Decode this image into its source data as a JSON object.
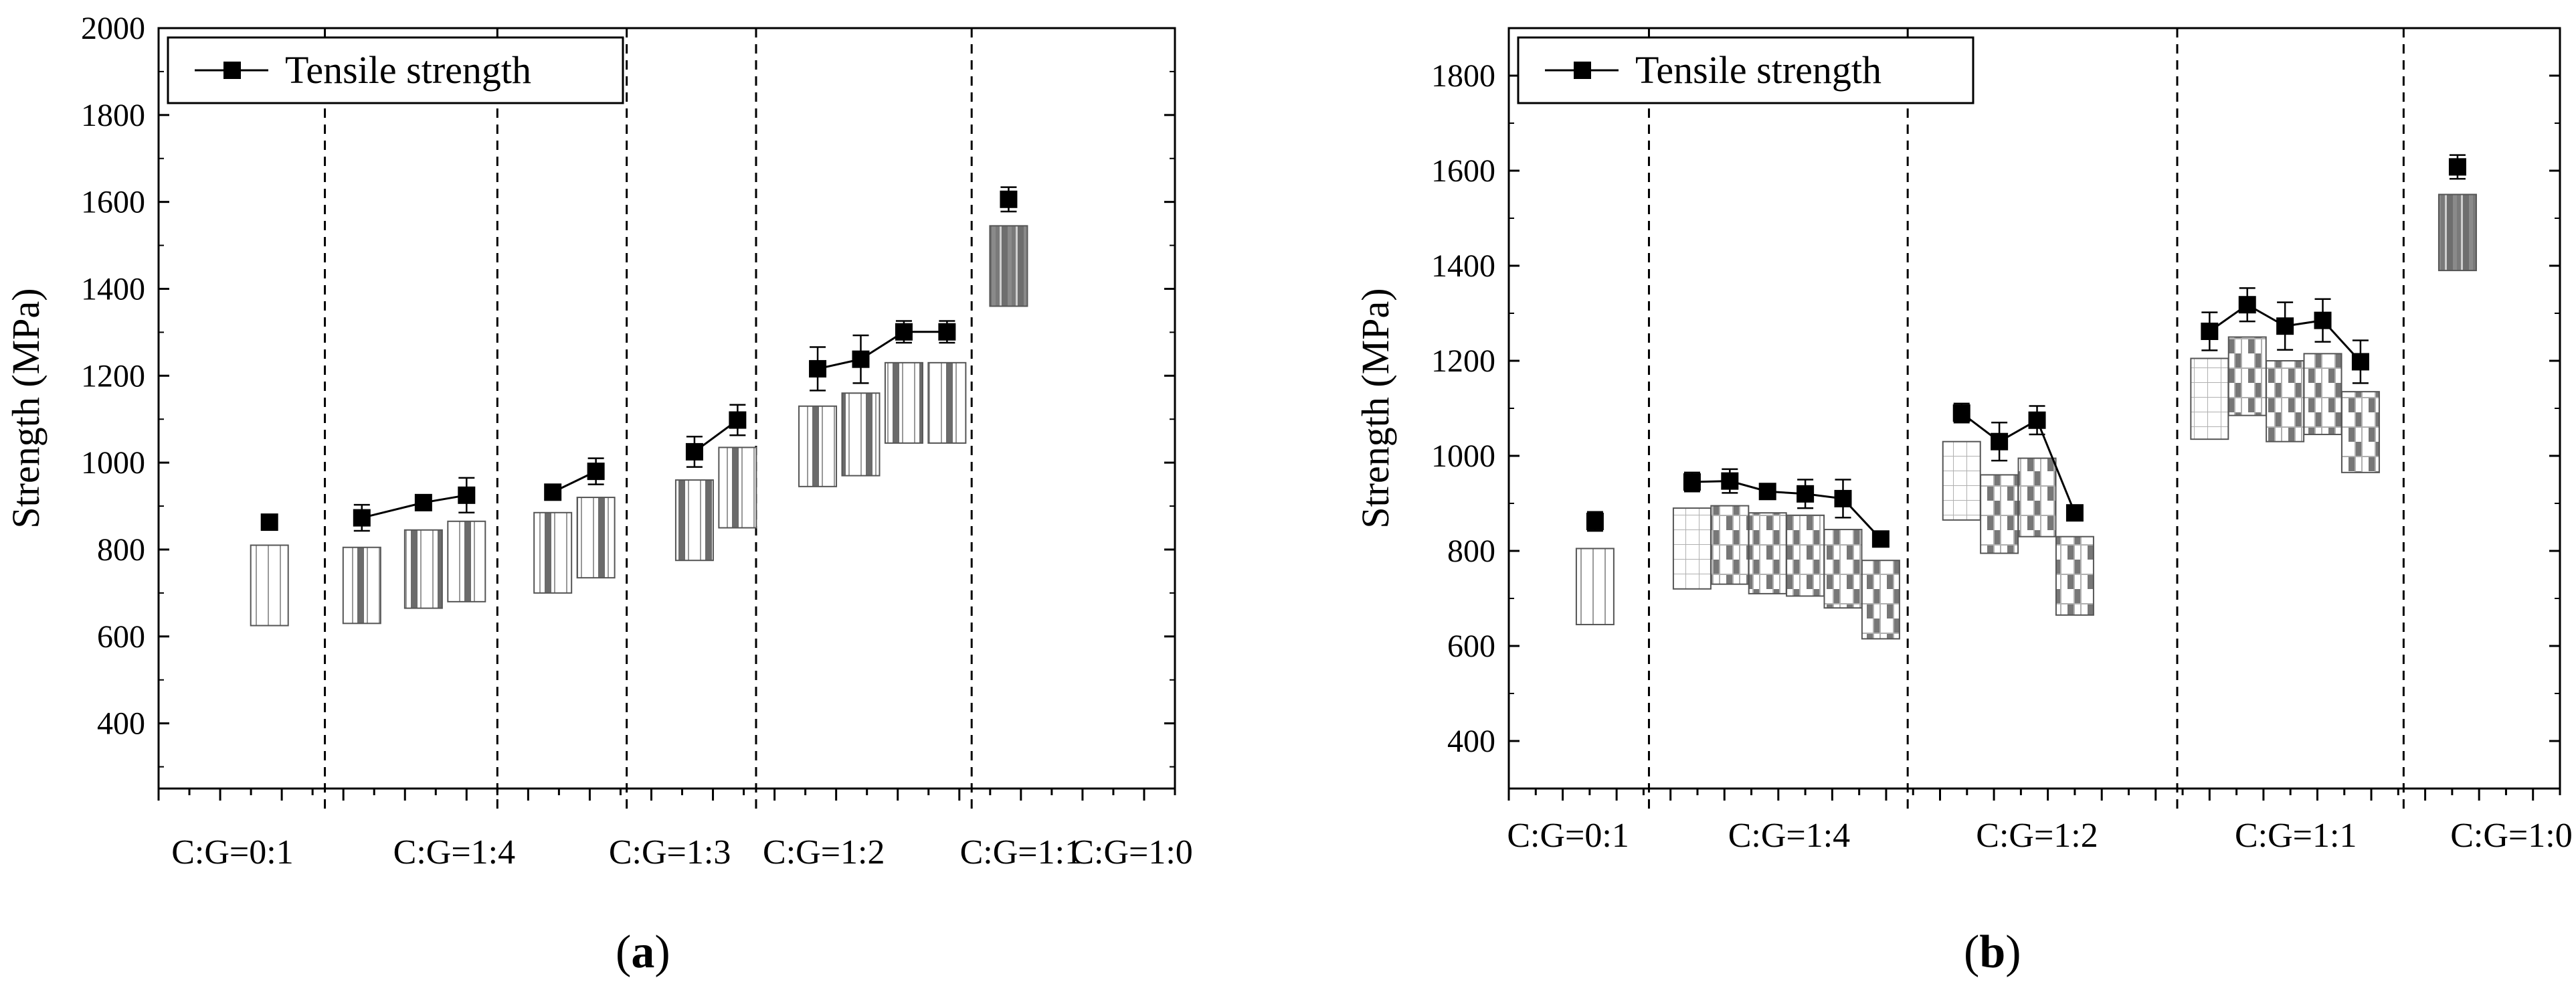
{
  "figure": {
    "panel_labels": [
      "a",
      "b"
    ]
  },
  "chart_data": [
    {
      "type": "scatter",
      "panel": "a",
      "title": "",
      "xlabel": "",
      "ylabel": "Strength (MPa)",
      "ylim": [
        250,
        2000
      ],
      "yticks": [
        400,
        600,
        800,
        1000,
        1200,
        1400,
        1600,
        1800,
        2000
      ],
      "xlim": [
        0,
        16.5
      ],
      "legend": {
        "label": "Tensile strength",
        "position": "top-left"
      },
      "group_labels": [
        {
          "label": "C:G=0:1",
          "x": 1.2
        },
        {
          "label": "C:G=1:4",
          "x": 4.8
        },
        {
          "label": "C:G=1:3",
          "x": 8.3
        },
        {
          "label": "C:G=1:2",
          "x": 10.8
        },
        {
          "label": "C:G=1:1",
          "x": 14.0
        },
        {
          "label": "C:G=1:0",
          "x": 15.8
        }
      ],
      "group_separators": [
        2.7,
        5.5,
        7.6,
        9.7,
        13.2
      ],
      "series": [
        {
          "name": "Tensile strength",
          "segments": [
            {
              "x": [
                1.8
              ],
              "y": [
                863
              ],
              "err": [
                15
              ]
            },
            {
              "x": [
                3.3,
                4.3,
                5.0
              ],
              "y": [
                873,
                908,
                925
              ],
              "err": [
                30,
                10,
                40
              ]
            },
            {
              "x": [
                6.4,
                7.1
              ],
              "y": [
                932,
                980
              ],
              "err": [
                10,
                30
              ]
            },
            {
              "x": [
                8.7,
                9.4
              ],
              "y": [
                1025,
                1098
              ],
              "err": [
                35,
                35
              ]
            },
            {
              "x": [
                10.7,
                11.4,
                12.1,
                12.8
              ],
              "y": [
                1216,
                1238,
                1301,
                1301
              ],
              "err": [
                50,
                55,
                25,
                25
              ]
            },
            {
              "x": [
                13.8
              ],
              "y": [
                1606
              ],
              "err": [
                28
              ]
            }
          ]
        }
      ],
      "layups": [
        {
          "x": 1.8,
          "bottom": 625,
          "top": 810,
          "fill": "light"
        },
        {
          "x": 3.3,
          "bottom": 630,
          "top": 805,
          "fill": "mixed"
        },
        {
          "x": 4.3,
          "bottom": 665,
          "top": 845,
          "fill": "mixed"
        },
        {
          "x": 5.0,
          "bottom": 680,
          "top": 865,
          "fill": "mixed"
        },
        {
          "x": 6.4,
          "bottom": 700,
          "top": 885,
          "fill": "mixed"
        },
        {
          "x": 7.1,
          "bottom": 735,
          "top": 920,
          "fill": "mixed"
        },
        {
          "x": 8.7,
          "bottom": 775,
          "top": 960,
          "fill": "mixed"
        },
        {
          "x": 9.4,
          "bottom": 850,
          "top": 1035,
          "fill": "mixed"
        },
        {
          "x": 10.7,
          "bottom": 945,
          "top": 1130,
          "fill": "mixed"
        },
        {
          "x": 11.4,
          "bottom": 970,
          "top": 1160,
          "fill": "mixed"
        },
        {
          "x": 12.1,
          "bottom": 1045,
          "top": 1230,
          "fill": "mixed"
        },
        {
          "x": 12.8,
          "bottom": 1045,
          "top": 1230,
          "fill": "mixed"
        },
        {
          "x": 13.8,
          "bottom": 1360,
          "top": 1545,
          "fill": "dark"
        }
      ]
    },
    {
      "type": "scatter",
      "panel": "b",
      "title": "",
      "xlabel": "",
      "ylabel": "Strength (MPa)",
      "ylim": [
        300,
        1900
      ],
      "yticks": [
        400,
        600,
        800,
        1000,
        1200,
        1400,
        1600,
        1800
      ],
      "xlim": [
        0,
        19.5
      ],
      "legend": {
        "label": "Tensile strength",
        "position": "top-left"
      },
      "group_labels": [
        {
          "label": "C:G=0:1",
          "x": 1.1
        },
        {
          "label": "C:G=1:4",
          "x": 5.2
        },
        {
          "label": "C:G=1:2",
          "x": 9.8
        },
        {
          "label": "C:G=1:1",
          "x": 14.6
        },
        {
          "label": "C:G=1:0",
          "x": 18.6
        }
      ],
      "group_separators": [
        2.6,
        7.4,
        12.4,
        16.6
      ],
      "series": [
        {
          "name": "Tensile strength",
          "segments": [
            {
              "x": [
                1.6
              ],
              "y": [
                862
              ],
              "err": [
                20
              ]
            },
            {
              "x": [
                3.4,
                4.1,
                4.8,
                5.5,
                6.2,
                6.9
              ],
              "y": [
                945,
                947,
                925,
                920,
                910,
                825
              ],
              "err": [
                20,
                25,
                15,
                30,
                40,
                0
              ]
            },
            {
              "x": [
                8.4,
                9.1,
                9.8,
                10.5
              ],
              "y": [
                1090,
                1030,
                1075,
                880
              ],
              "err": [
                20,
                40,
                30,
                15
              ]
            },
            {
              "x": [
                13.0,
                13.7,
                14.4,
                15.1,
                15.8
              ],
              "y": [
                1262,
                1318,
                1273,
                1285,
                1198
              ],
              "err": [
                40,
                35,
                50,
                45,
                45
              ]
            },
            {
              "x": [
                17.6
              ],
              "y": [
                1608
              ],
              "err": [
                25
              ]
            }
          ]
        }
      ],
      "layups": [
        {
          "x": 1.6,
          "bottom": 645,
          "top": 805,
          "fill": "light"
        },
        {
          "x": 3.4,
          "bottom": 720,
          "top": 890,
          "fill": "grid-top"
        },
        {
          "x": 4.1,
          "bottom": 730,
          "top": 895,
          "fill": "grid-mixed"
        },
        {
          "x": 4.8,
          "bottom": 710,
          "top": 880,
          "fill": "grid-mixed"
        },
        {
          "x": 5.5,
          "bottom": 705,
          "top": 875,
          "fill": "grid-mixed"
        },
        {
          "x": 6.2,
          "bottom": 680,
          "top": 845,
          "fill": "grid-mixed"
        },
        {
          "x": 6.9,
          "bottom": 615,
          "top": 780,
          "fill": "grid-mixed"
        },
        {
          "x": 8.4,
          "bottom": 865,
          "top": 1030,
          "fill": "grid-top"
        },
        {
          "x": 9.1,
          "bottom": 795,
          "top": 960,
          "fill": "grid-mixed"
        },
        {
          "x": 9.8,
          "bottom": 830,
          "top": 995,
          "fill": "grid-mixed"
        },
        {
          "x": 10.5,
          "bottom": 665,
          "top": 830,
          "fill": "grid-mixed"
        },
        {
          "x": 13.0,
          "bottom": 1035,
          "top": 1205,
          "fill": "grid-top"
        },
        {
          "x": 13.7,
          "bottom": 1085,
          "top": 1250,
          "fill": "grid-mixed"
        },
        {
          "x": 14.4,
          "bottom": 1030,
          "top": 1200,
          "fill": "grid-mixed"
        },
        {
          "x": 15.1,
          "bottom": 1045,
          "top": 1215,
          "fill": "grid-mixed"
        },
        {
          "x": 15.8,
          "bottom": 965,
          "top": 1135,
          "fill": "grid-mixed"
        },
        {
          "x": 17.6,
          "bottom": 1390,
          "top": 1550,
          "fill": "dark"
        }
      ]
    }
  ]
}
